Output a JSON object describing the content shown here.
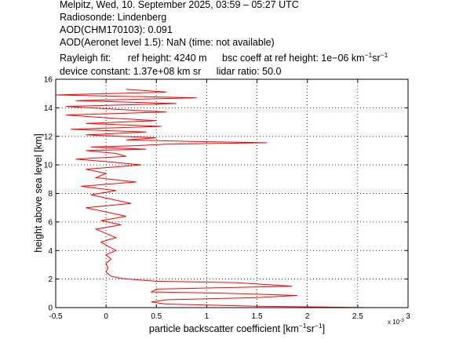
{
  "header": {
    "line1": "Melpitz, Wed, 10. September 2025, 03:59 – 05:27 UTC",
    "line2": "Radiosonde: Lindenberg",
    "line3": "AOD(CHM170103): 0.091",
    "line4": "AOD(Aeronet level 1.5): NaN   (time: not available)",
    "rayleigh_label": "Rayleigh fit:",
    "ref_height": "ref height: 4240 m",
    "bsc_coeff_prefix": "bsc coeff at ref height: 1e−06 km",
    "bsc_exp1": "−1",
    "bsc_sr": "sr",
    "bsc_exp2": "−1",
    "device_constant": "device constant: 1.37e+08 km sr",
    "lidar_ratio": "lidar ratio: 50.0"
  },
  "chart_data": {
    "type": "line",
    "xlabel_prefix": "particle backscatter coefficient [km",
    "xlabel_exp1": "−1",
    "xlabel_mid": "sr",
    "xlabel_exp2": "−1",
    "xlabel_suffix": "]",
    "ylabel": "height above sea level [km]",
    "x_multiplier": "x 10",
    "x_multiplier_exp": "-3",
    "xlim": [
      -0.5,
      3
    ],
    "ylim": [
      0,
      16
    ],
    "xticks": [
      "-0.5",
      "0",
      "0.5",
      "1",
      "1.5",
      "2",
      "2.5",
      "3"
    ],
    "xtick_values": [
      -0.5,
      0,
      0.5,
      1,
      1.5,
      2,
      2.5,
      3
    ],
    "yticks": [
      "0",
      "2",
      "4",
      "6",
      "8",
      "10",
      "12",
      "14",
      "16"
    ],
    "ytick_values": [
      0,
      2,
      4,
      6,
      8,
      10,
      12,
      14,
      16
    ],
    "grid": true,
    "series": [
      {
        "color": "#ff0000",
        "x": [
          2.62,
          1.5,
          0.6,
          0.45,
          0.6,
          1.5,
          1.9,
          1.2,
          0.45,
          0.5,
          1.85,
          1.3,
          0.5,
          0.3,
          0.15,
          0.05,
          0.0,
          0.02,
          0.0,
          0.05,
          0.0,
          0.1,
          0.02,
          -0.05,
          0.1,
          0.0,
          -0.1,
          0.15,
          -0.05,
          0.2,
          0.0,
          -0.2,
          0.25,
          0.05,
          -0.15,
          0.1,
          -0.25,
          0.3,
          -0.1,
          0.0,
          -0.2,
          0.35,
          0.05,
          -0.3,
          0.2,
          0.1,
          -0.2,
          0.4,
          -0.15,
          0.3,
          0.6,
          1.1,
          1.6,
          0.8,
          0.2,
          0.5,
          -0.2,
          0.4,
          -0.35,
          0.55,
          -0.2,
          0.5,
          0.0,
          -0.4,
          0.6,
          0.1,
          -0.4,
          0.7,
          -0.3,
          0.9,
          -0.5,
          0.6,
          0.2
        ],
        "y": [
          0.0,
          0.1,
          0.25,
          0.4,
          0.55,
          0.7,
          0.85,
          1.0,
          1.1,
          1.3,
          1.5,
          1.75,
          1.85,
          1.95,
          2.05,
          2.2,
          2.5,
          2.8,
          3.1,
          3.4,
          3.7,
          4.0,
          4.3,
          4.6,
          4.9,
          5.2,
          5.5,
          5.8,
          6.1,
          6.4,
          6.7,
          7.0,
          7.3,
          7.6,
          7.9,
          8.2,
          8.5,
          8.8,
          9.1,
          9.4,
          9.7,
          10.0,
          10.2,
          10.4,
          10.6,
          10.8,
          11.0,
          11.1,
          11.25,
          11.35,
          11.45,
          11.5,
          11.55,
          11.65,
          11.75,
          11.9,
          12.1,
          12.3,
          12.5,
          12.7,
          12.9,
          13.1,
          13.3,
          13.5,
          13.7,
          13.9,
          14.1,
          14.3,
          14.5,
          14.7,
          14.9,
          15.1,
          15.3
        ]
      }
    ]
  }
}
